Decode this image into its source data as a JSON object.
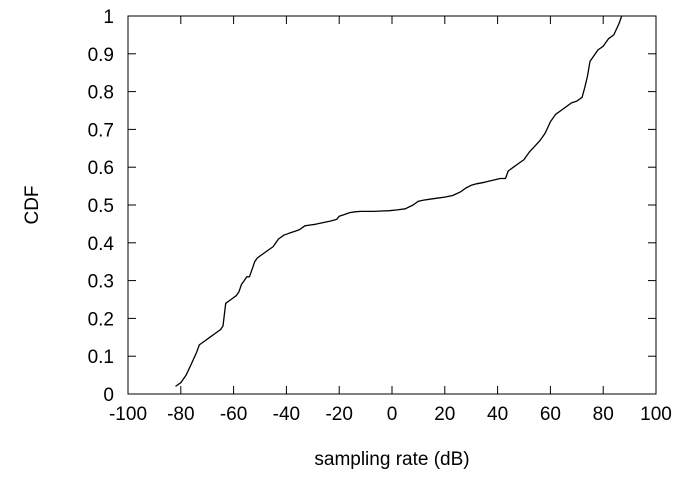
{
  "chart_data": {
    "type": "line",
    "title": "",
    "xlabel": "sampling rate (dB)",
    "ylabel": "CDF",
    "xlim": [
      -100,
      100
    ],
    "ylim": [
      0,
      1
    ],
    "xticks": [
      -100,
      -80,
      -60,
      -40,
      -20,
      0,
      20,
      40,
      60,
      80,
      100
    ],
    "yticks": [
      0,
      0.1,
      0.2,
      0.3,
      0.4,
      0.5,
      0.6,
      0.7,
      0.8,
      0.9,
      1
    ],
    "xtick_labels": [
      "-100",
      "-80",
      "-60",
      "-40",
      "-20",
      "0",
      "20",
      "40",
      "60",
      "80",
      "100"
    ],
    "ytick_labels": [
      "0",
      "0.1",
      "0.2",
      "0.3",
      "0.4",
      "0.5",
      "0.6",
      "0.7",
      "0.8",
      "0.9",
      "1"
    ],
    "grid": false,
    "legend": "none",
    "series": [
      {
        "color": "#000000",
        "x": [
          -82,
          -80,
          -78,
          -76,
          -74,
          -73,
          -71,
          -69,
          -67,
          -65,
          -64,
          -63,
          -61,
          -59,
          -58,
          -57,
          -56,
          -55,
          -54,
          -53,
          -52,
          -51,
          -49,
          -47,
          -45,
          -44,
          -43,
          -42,
          -41,
          -39,
          -37,
          -35,
          -34,
          -33,
          -31,
          -29,
          -27,
          -25,
          -23,
          -21,
          -20,
          -18,
          -16,
          -14,
          -12,
          -10,
          -7,
          -4,
          -1,
          2,
          5,
          8,
          10,
          12,
          14,
          17,
          20,
          23,
          26,
          28,
          30,
          32,
          35,
          38,
          41,
          43,
          44,
          46,
          48,
          50,
          51,
          52,
          54,
          56,
          57,
          58,
          59,
          60,
          62,
          64,
          66,
          68,
          70,
          72,
          73,
          74,
          75,
          76,
          78,
          80,
          81,
          82,
          84,
          86,
          87
        ],
        "y": [
          0.02,
          0.03,
          0.05,
          0.08,
          0.11,
          0.13,
          0.14,
          0.15,
          0.16,
          0.17,
          0.18,
          0.24,
          0.25,
          0.26,
          0.27,
          0.29,
          0.3,
          0.31,
          0.31,
          0.33,
          0.35,
          0.36,
          0.37,
          0.38,
          0.39,
          0.4,
          0.41,
          0.415,
          0.42,
          0.425,
          0.43,
          0.435,
          0.44,
          0.445,
          0.447,
          0.449,
          0.452,
          0.455,
          0.458,
          0.462,
          0.47,
          0.475,
          0.48,
          0.482,
          0.483,
          0.483,
          0.483,
          0.484,
          0.485,
          0.487,
          0.49,
          0.5,
          0.51,
          0.513,
          0.515,
          0.518,
          0.521,
          0.525,
          0.535,
          0.545,
          0.552,
          0.556,
          0.56,
          0.565,
          0.57,
          0.57,
          0.59,
          0.6,
          0.61,
          0.62,
          0.63,
          0.64,
          0.655,
          0.67,
          0.68,
          0.69,
          0.705,
          0.72,
          0.74,
          0.75,
          0.76,
          0.77,
          0.775,
          0.785,
          0.81,
          0.84,
          0.88,
          0.89,
          0.91,
          0.92,
          0.93,
          0.94,
          0.95,
          0.98,
          1.0
        ]
      }
    ]
  }
}
